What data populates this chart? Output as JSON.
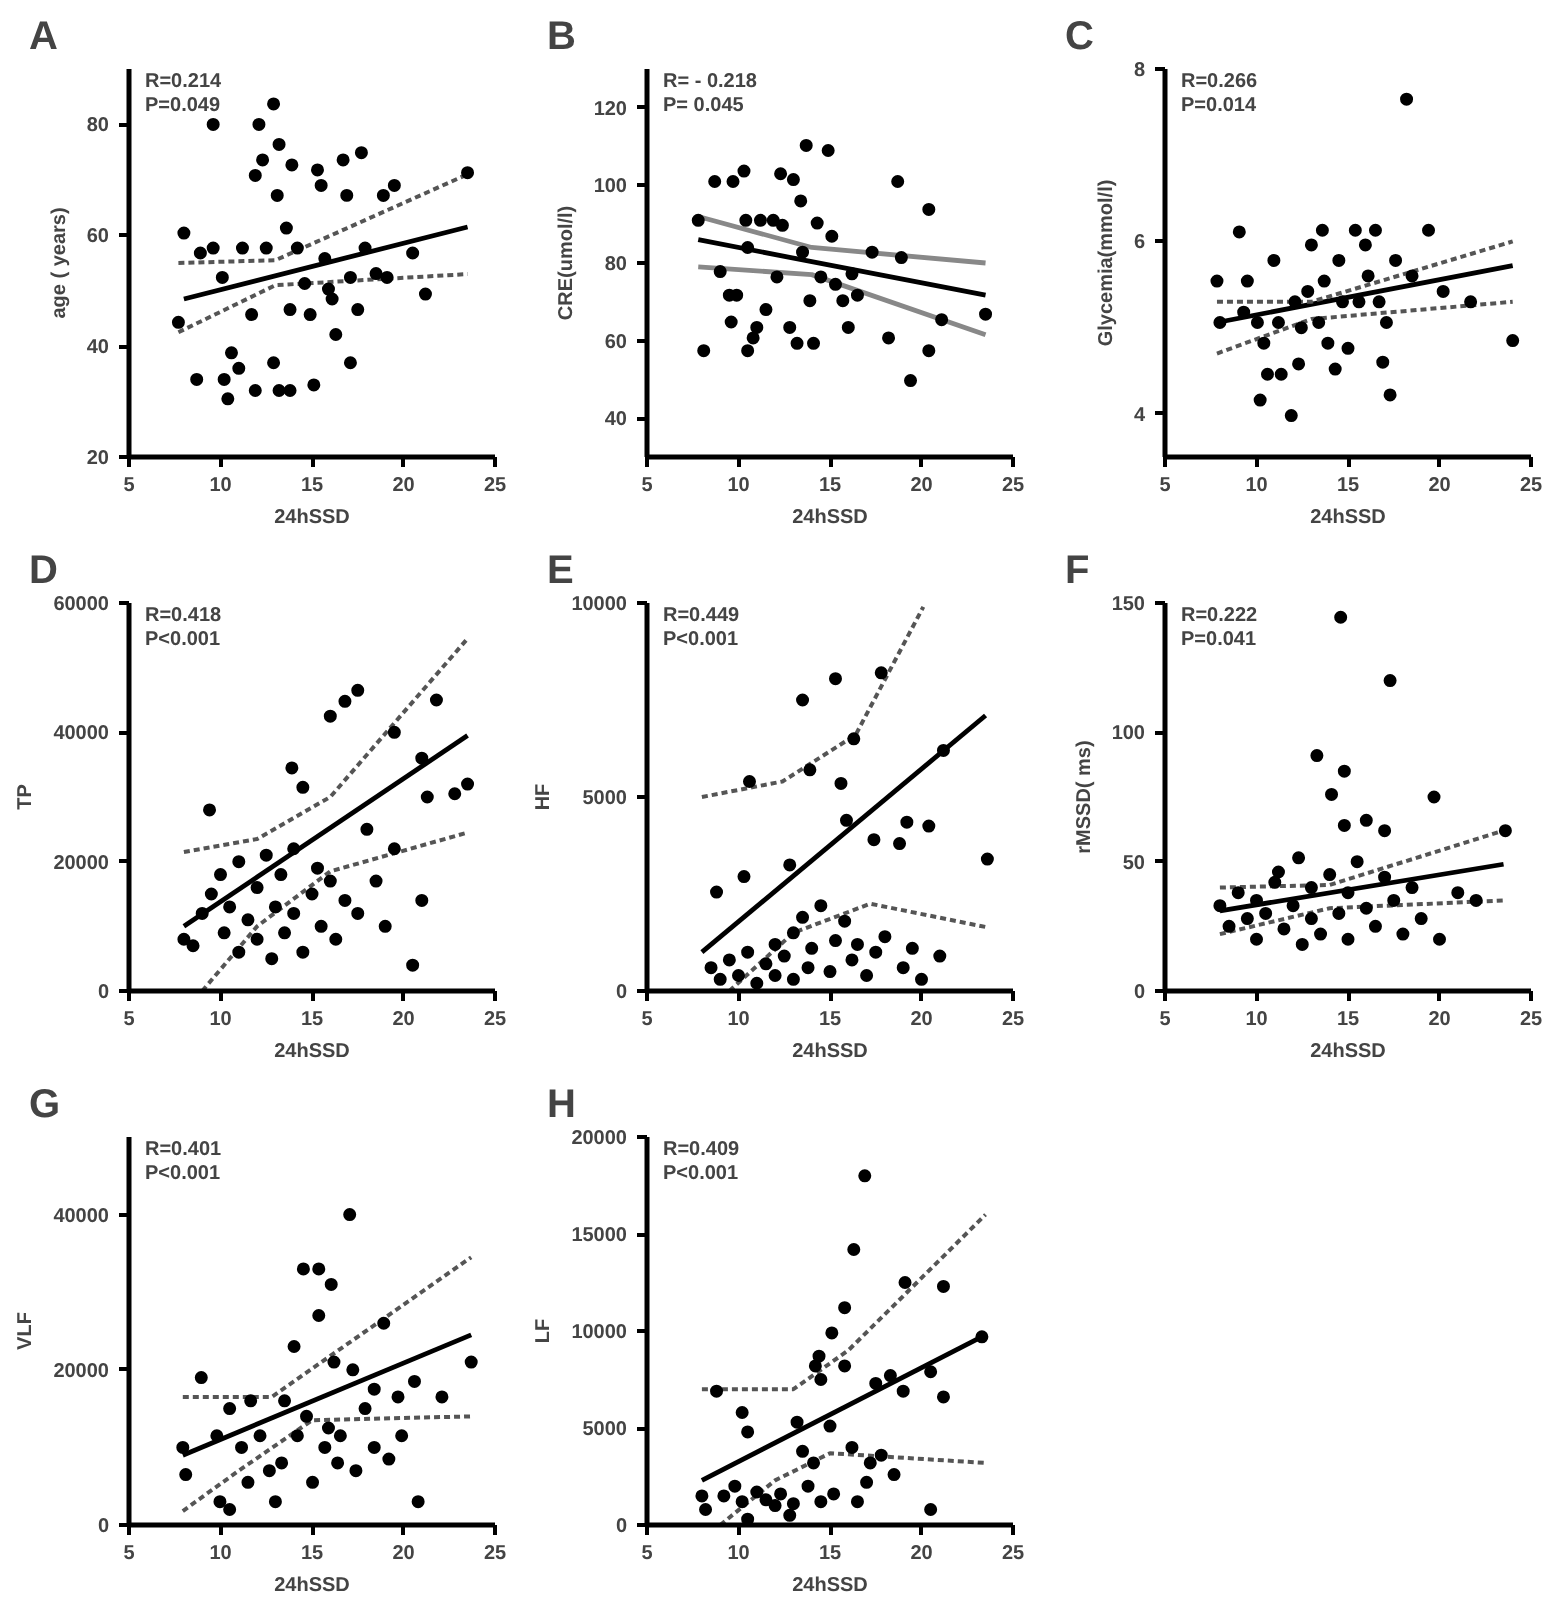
{
  "chart_data": [
    {
      "type": "scatter",
      "title": "A",
      "xlabel": "24hSSD",
      "ylabel": "age ( years)",
      "xlim": [
        5,
        25
      ],
      "xticks": [
        5,
        10,
        15,
        20,
        25
      ],
      "ylim": [
        20,
        90
      ],
      "yticks": [
        20,
        40,
        60,
        80
      ],
      "annotations": [
        "R=0.214",
        "P=0.049"
      ],
      "series": [
        {
          "marker": "circle",
          "color": "#000000",
          "x": [
            8.0,
            7.7,
            8.7,
            8.9,
            9.6,
            9.6,
            10.1,
            10.2,
            10.4,
            10.6,
            11.0,
            11.2,
            11.9,
            11.7,
            12.1,
            12.3,
            11.9,
            12.5,
            12.9,
            12.9,
            13.2,
            13.1,
            13.2,
            13.6,
            13.8,
            13.9,
            13.8,
            14.2,
            14.6,
            15.3,
            15.5,
            15.1,
            14.9,
            15.7,
            15.9,
            16.1,
            16.3,
            16.7,
            16.9,
            17.1,
            17.1,
            17.5,
            17.7,
            17.9,
            18.5,
            18.9,
            19.5,
            20.5,
            19.1,
            21.2,
            23.5
          ],
          "values": [
            60.4,
            44.3,
            34,
            56.8,
            80,
            57.7,
            52.4,
            34,
            30.5,
            38.8,
            36,
            57.7,
            32,
            45.7,
            80,
            73.6,
            70.8,
            57.7,
            37,
            83.7,
            76.4,
            67.2,
            32,
            61.3,
            32,
            72.7,
            46.6,
            57.7,
            51.3,
            71.8,
            69,
            33,
            45.7,
            55.8,
            50.3,
            48.5,
            42.1,
            73.6,
            67.2,
            52.4,
            37,
            46.6,
            74.9,
            57.7,
            53.1,
            67.2,
            69,
            56.8,
            52.4,
            49.4,
            71.3
          ]
        },
        {
          "type": "line",
          "color": "#000000",
          "line_style": "solid",
          "x": [
            8,
            23.5
          ],
          "values": [
            48.5,
            61.5
          ]
        },
        {
          "type": "line",
          "color": "#555555",
          "line_style": "dotted",
          "x": [
            7.7,
            13,
            23.5
          ],
          "values": [
            55,
            55.5,
            71
          ]
        },
        {
          "type": "line",
          "color": "#555555",
          "line_style": "dotted",
          "x": [
            7.7,
            13,
            23.5
          ],
          "values": [
            42.5,
            51,
            53
          ]
        }
      ]
    },
    {
      "type": "scatter",
      "title": "B",
      "xlabel": "24hSSD",
      "ylabel": "CRE(umol/l)",
      "xlim": [
        5,
        25
      ],
      "xticks": [
        5,
        10,
        15,
        20,
        25
      ],
      "ylim": [
        30,
        130
      ],
      "yticks": [
        40,
        60,
        80,
        100,
        120
      ],
      "annotations": [
        "R= - 0.218",
        "P=  0.045"
      ],
      "series": [
        {
          "marker": "circle",
          "color": "#000000",
          "x": [
            7.8,
            8.1,
            8.7,
            9.0,
            9.5,
            9.6,
            9.9,
            9.7,
            10.3,
            10.4,
            10.5,
            10.5,
            10.8,
            11.0,
            11.2,
            11.5,
            11.9,
            12.1,
            12.3,
            12.4,
            12.8,
            13.0,
            13.2,
            13.4,
            13.5,
            13.7,
            13.9,
            14.1,
            14.3,
            14.5,
            14.9,
            15.1,
            15.3,
            15.7,
            16.0,
            16.2,
            16.5,
            17.3,
            18.2,
            18.7,
            18.9,
            19.4,
            20.4,
            20.4,
            21.1,
            23.5
          ],
          "values": [
            91,
            57.4,
            101,
            77.8,
            71.7,
            64.8,
            71.7,
            101,
            103.7,
            91,
            84,
            57.4,
            60.7,
            63.4,
            91,
            68,
            91,
            76.4,
            103,
            89.7,
            63.4,
            101.5,
            59.3,
            96,
            82.8,
            110.3,
            70.3,
            59.3,
            90.3,
            76.4,
            109,
            86.9,
            74.5,
            70.3,
            63.4,
            77.2,
            71.7,
            82.8,
            60.7,
            101,
            81.4,
            49.7,
            93.8,
            57.4,
            65.4,
            66.8
          ]
        },
        {
          "type": "line",
          "color": "#000000",
          "line_style": "solid",
          "x": [
            7.8,
            23.5
          ],
          "values": [
            86,
            71.7
          ]
        },
        {
          "type": "line",
          "color": "#888888",
          "line_style": "solid",
          "x": [
            7.8,
            14,
            23.5
          ],
          "values": [
            92,
            84,
            80
          ]
        },
        {
          "type": "line",
          "color": "#888888",
          "line_style": "solid",
          "x": [
            7.8,
            14,
            23.5
          ],
          "values": [
            79,
            77,
            61.5
          ]
        }
      ]
    },
    {
      "type": "scatter",
      "title": "C",
      "xlabel": "24hSSD",
      "ylabel": "Glycemia(mmol/l)",
      "xlim": [
        5,
        25
      ],
      "xticks": [
        5,
        10,
        15,
        20,
        25
      ],
      "ylim": [
        3.5,
        8
      ],
      "yticks": [
        4,
        6,
        8
      ],
      "annotations": [
        "R=0.266",
        "P=0.014"
      ],
      "series": [
        {
          "marker": "circle",
          "color": "#000000",
          "x": [
            7.84,
            8.0,
            9.06,
            9.3,
            9.5,
            10.05,
            10.2,
            10.4,
            10.6,
            10.95,
            11.2,
            11.35,
            11.9,
            12.1,
            12.3,
            12.45,
            12.8,
            13.0,
            13.4,
            13.6,
            13.7,
            13.9,
            14.3,
            14.5,
            14.7,
            15.0,
            15.4,
            15.6,
            15.95,
            16.1,
            16.5,
            16.7,
            16.9,
            17.1,
            17.3,
            17.6,
            18.2,
            18.5,
            19.4,
            20.2,
            21.7,
            24.0
          ],
          "values": [
            5.54,
            5.06,
            6.11,
            5.18,
            5.54,
            5.06,
            4.16,
            4.82,
            4.46,
            5.78,
            5.06,
            4.46,
            3.98,
            5.3,
            4.58,
            5.0,
            5.42,
            5.96,
            5.06,
            6.13,
            5.54,
            4.82,
            4.52,
            5.78,
            5.3,
            4.76,
            6.13,
            5.3,
            5.96,
            5.6,
            6.13,
            5.3,
            4.6,
            5.06,
            4.22,
            5.78,
            7.65,
            5.6,
            6.13,
            5.42,
            5.3,
            4.85
          ]
        },
        {
          "type": "line",
          "color": "#000000",
          "line_style": "solid",
          "x": [
            7.84,
            24
          ],
          "values": [
            5.06,
            5.72
          ]
        },
        {
          "type": "line",
          "color": "#555555",
          "line_style": "dotted",
          "x": [
            7.84,
            13,
            24
          ],
          "values": [
            5.3,
            5.3,
            6.0
          ]
        },
        {
          "type": "line",
          "color": "#555555",
          "line_style": "dotted",
          "x": [
            7.84,
            13,
            24
          ],
          "values": [
            4.7,
            5.1,
            5.3
          ]
        }
      ]
    },
    {
      "type": "scatter",
      "title": "D",
      "xlabel": "24hSSD",
      "ylabel": "TP",
      "xlim": [
        5,
        25
      ],
      "xticks": [
        5,
        10,
        15,
        20,
        25
      ],
      "ylim": [
        0,
        60000
      ],
      "yticks": [
        0,
        20000,
        40000,
        60000
      ],
      "annotations": [
        "R=0.418",
        "P<0.001"
      ],
      "series": [
        {
          "marker": "circle",
          "color": "#000000",
          "x": [
            9.4,
            13.9,
            14.5,
            16,
            16.8,
            17.5,
            19.5,
            21.8,
            21,
            21.3,
            22.8,
            23.5,
            8,
            8.5,
            9,
            9.5,
            10,
            10.2,
            10.5,
            11,
            11,
            11.5,
            12,
            12,
            12.5,
            12.8,
            13,
            13.3,
            13.5,
            14,
            14,
            14.5,
            15,
            15.3,
            15.5,
            16,
            16.3,
            16.8,
            17.5,
            18,
            18.5,
            19,
            19.5,
            20.5,
            21
          ],
          "values": [
            28000,
            34500,
            31500,
            42500,
            44800,
            46500,
            40000,
            45000,
            36000,
            30000,
            30500,
            32000,
            8000,
            7000,
            12000,
            15000,
            18000,
            9000,
            13000,
            20000,
            6000,
            11000,
            16000,
            8000,
            21000,
            5000,
            13000,
            18000,
            9000,
            22000,
            12000,
            6000,
            15000,
            19000,
            10000,
            17000,
            8000,
            14000,
            12000,
            25000,
            17000,
            10000,
            22000,
            4000,
            14000
          ]
        },
        {
          "type": "line",
          "color": "#000000",
          "line_style": "solid",
          "x": [
            8,
            23.5
          ],
          "values": [
            10000,
            39500
          ]
        },
        {
          "type": "line",
          "color": "#555555",
          "line_style": "dotted",
          "x": [
            8,
            12,
            16,
            23.5
          ],
          "values": [
            21500,
            23500,
            30000,
            54500
          ]
        },
        {
          "type": "line",
          "color": "#555555",
          "line_style": "dotted",
          "x": [
            9,
            12,
            16,
            23.5
          ],
          "values": [
            0,
            10000,
            18500,
            24500
          ]
        }
      ]
    },
    {
      "type": "scatter",
      "title": "E",
      "xlabel": "24hSSD",
      "ylabel": "HF",
      "xlim": [
        5,
        25
      ],
      "xticks": [
        5,
        10,
        15,
        20,
        25
      ],
      "ylim": [
        0,
        10000
      ],
      "yticks": [
        0,
        5000,
        10000
      ],
      "annotations": [
        "R=0.449",
        "P<0.001"
      ],
      "series": [
        {
          "marker": "circle",
          "color": "#000000",
          "x": [
            10.6,
            13.5,
            15.3,
            17.8,
            13.9,
            15.6,
            16.3,
            12.8,
            8.8,
            10.3,
            15.9,
            17.4,
            19.2,
            18.8,
            20.4,
            21.2,
            23.6,
            8.5,
            9,
            9.5,
            10,
            10.5,
            11,
            11.5,
            12,
            12,
            12.5,
            13,
            13,
            13.5,
            13.8,
            14,
            14.5,
            15,
            15.3,
            15.8,
            16.2,
            16.5,
            17,
            17.5,
            18,
            19,
            20,
            19.5,
            21
          ],
          "values": [
            5400,
            7500,
            8050,
            8200,
            5700,
            5350,
            6500,
            3250,
            2550,
            2950,
            4400,
            3900,
            4350,
            3800,
            4250,
            6200,
            3400,
            600,
            300,
            800,
            400,
            1000,
            200,
            700,
            1200,
            400,
            900,
            1500,
            300,
            1900,
            600,
            1100,
            2200,
            500,
            1300,
            1800,
            800,
            1200,
            400,
            1000,
            1400,
            600,
            300,
            1100,
            900
          ]
        },
        {
          "type": "line",
          "color": "#000000",
          "line_style": "solid",
          "x": [
            8,
            23.5
          ],
          "values": [
            1000,
            7100
          ]
        },
        {
          "type": "line",
          "color": "#555555",
          "line_style": "dotted",
          "x": [
            8,
            12.4,
            16.4,
            20.1
          ],
          "values": [
            5000,
            5400,
            6600,
            9900
          ]
        },
        {
          "type": "line",
          "color": "#555555",
          "line_style": "dotted",
          "x": [
            9.5,
            13,
            17.2,
            23.5
          ],
          "values": [
            0,
            1500,
            2250,
            1650
          ]
        }
      ]
    },
    {
      "type": "scatter",
      "title": "F",
      "xlabel": "24hSSD",
      "ylabel": "rMSSD( ms)",
      "xlim": [
        5,
        25
      ],
      "xticks": [
        5,
        10,
        15,
        20,
        25
      ],
      "ylim": [
        0,
        150
      ],
      "yticks": [
        0,
        50,
        100,
        150
      ],
      "annotations": [
        "R=0.222",
        "P=0.041"
      ],
      "series": [
        {
          "marker": "circle",
          "color": "#000000",
          "x": [
            14.6,
            17.3,
            13.3,
            14.8,
            14.1,
            19.7,
            16,
            17,
            14.8,
            23.6,
            12.3,
            11.2,
            8,
            8.5,
            9,
            9.5,
            10,
            10,
            10.5,
            11,
            11.5,
            12,
            12.5,
            13,
            13,
            13.5,
            14,
            14.5,
            15,
            15,
            15.5,
            16,
            16.5,
            17,
            17.5,
            18,
            18.5,
            19,
            20,
            21,
            22
          ],
          "values": [
            144.5,
            120,
            91,
            85,
            76,
            75,
            66,
            62,
            64,
            62,
            51.5,
            46,
            33,
            25,
            38,
            28,
            20,
            35,
            30,
            42,
            24,
            33,
            18,
            40,
            28,
            22,
            45,
            30,
            38,
            20,
            50,
            32,
            25,
            44,
            35,
            22,
            40,
            28,
            20,
            38,
            35
          ]
        },
        {
          "type": "line",
          "color": "#000000",
          "line_style": "solid",
          "x": [
            8,
            23.5
          ],
          "values": [
            31,
            49
          ]
        },
        {
          "type": "line",
          "color": "#555555",
          "line_style": "dotted",
          "x": [
            8,
            14,
            23.5
          ],
          "values": [
            40,
            41,
            62
          ]
        },
        {
          "type": "line",
          "color": "#555555",
          "line_style": "dotted",
          "x": [
            8,
            14,
            23.5
          ],
          "values": [
            22,
            32,
            35
          ]
        }
      ]
    },
    {
      "type": "scatter",
      "title": "G",
      "xlabel": "24hSSD",
      "ylabel": "VLF",
      "xlim": [
        5,
        25
      ],
      "xticks": [
        5,
        10,
        15,
        20,
        25
      ],
      "ylim": [
        0,
        50000
      ],
      "yticks": [
        0,
        20000,
        40000
      ],
      "annotations": [
        "R=0.401",
        "P<0.001"
      ],
      "series": [
        {
          "marker": "circle",
          "color": "#000000",
          "x": [
            8.95,
            17.06,
            15.37,
            16.05,
            14.53,
            15.37,
            14.02,
            18.92,
            16.2,
            17.23,
            23.7,
            22.1,
            20.6,
            18.4,
            19.7,
            7.94,
            8.1,
            9.8,
            9.97,
            10.5,
            10.5,
            11.15,
            11.65,
            11.5,
            12.16,
            12.67,
            13.0,
            13.5,
            13.34,
            14.2,
            14.7,
            15.03,
            15.7,
            15.9,
            16.4,
            16.55,
            17.4,
            17.9,
            18.4,
            19.2,
            20.8,
            19.9
          ],
          "values": [
            19000,
            40000,
            33000,
            31000,
            33000,
            27000,
            23000,
            26000,
            21000,
            20000,
            21000,
            16500,
            18500,
            17500,
            16500,
            10000,
            6500,
            11500,
            3000,
            2000,
            15000,
            10000,
            16000,
            5500,
            11500,
            7000,
            3000,
            16000,
            8000,
            11500,
            14000,
            5500,
            10000,
            12500,
            8000,
            11500,
            7000,
            15000,
            10000,
            8500,
            3000,
            11500
          ]
        },
        {
          "type": "line",
          "color": "#000000",
          "line_style": "solid",
          "x": [
            7.94,
            23.7
          ],
          "values": [
            9000,
            24500
          ]
        },
        {
          "type": "line",
          "color": "#555555",
          "line_style": "dotted",
          "x": [
            7.94,
            12.8,
            23.7
          ],
          "values": [
            16500,
            16500,
            34500
          ]
        },
        {
          "type": "line",
          "color": "#555555",
          "line_style": "dotted",
          "x": [
            7.94,
            11,
            15,
            23.7
          ],
          "values": [
            1800,
            7000,
            13500,
            14000
          ]
        }
      ]
    },
    {
      "type": "scatter",
      "title": "H",
      "xlabel": "24hSSD",
      "ylabel": "LF",
      "xlim": [
        5,
        25
      ],
      "xticks": [
        5,
        10,
        15,
        20,
        25
      ],
      "ylim": [
        0,
        20000
      ],
      "yticks": [
        0,
        5000,
        10000,
        15000,
        20000
      ],
      "annotations": [
        "R=0.409",
        "P<0.001"
      ],
      "series": [
        {
          "marker": "circle",
          "color": "#000000",
          "x": [
            16.9,
            16.3,
            15.8,
            15.1,
            19.1,
            14.4,
            14.2,
            15.8,
            14.5,
            17.5,
            18.3,
            19.0,
            20.5,
            21.2,
            8.8,
            10.2,
            10.5,
            13.2,
            15,
            13.5,
            14.1,
            16.2,
            17.2,
            17.8,
            18.5,
            20.5,
            8,
            8.2,
            9.2,
            9.8,
            10.2,
            10.5,
            11,
            11.5,
            12,
            12.3,
            12.8,
            13,
            13.8,
            14.5,
            15.2,
            16.5,
            17,
            21.2,
            23.3
          ],
          "values": [
            18000,
            14200,
            11200,
            9900,
            12500,
            8700,
            8200,
            8200,
            7500,
            7300,
            7700,
            6900,
            7900,
            6600,
            6900,
            5800,
            4800,
            5300,
            5100,
            3800,
            3200,
            4000,
            3200,
            3600,
            2600,
            800,
            1500,
            800,
            1500,
            2000,
            1200,
            300,
            1700,
            1300,
            1000,
            1600,
            500,
            1100,
            2000,
            1200,
            1600,
            1200,
            2200,
            12300,
            9700
          ]
        },
        {
          "type": "line",
          "color": "#000000",
          "line_style": "solid",
          "x": [
            8,
            23.5
          ],
          "values": [
            2300,
            9800
          ]
        },
        {
          "type": "line",
          "color": "#555555",
          "line_style": "dotted",
          "x": [
            8,
            13,
            16,
            23.5
          ],
          "values": [
            7000,
            7000,
            9000,
            16000
          ]
        },
        {
          "type": "line",
          "color": "#555555",
          "line_style": "dotted",
          "x": [
            9,
            12,
            15,
            23.5
          ],
          "values": [
            0,
            2300,
            3700,
            3200
          ]
        }
      ]
    }
  ]
}
